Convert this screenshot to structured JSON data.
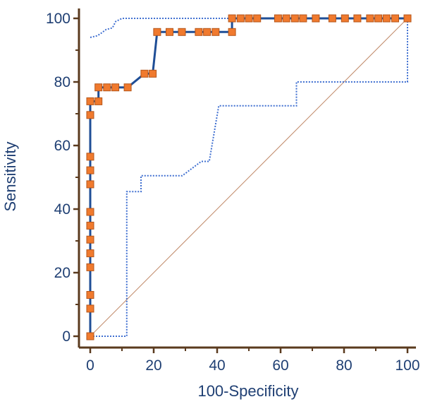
{
  "chart_data": {
    "type": "line",
    "xlabel": "100-Specificity",
    "ylabel": "Sensitivity",
    "xlim": [
      0,
      100
    ],
    "ylim": [
      0,
      100
    ],
    "x_ticks": [
      "0",
      "20",
      "40",
      "60",
      "80",
      "100"
    ],
    "y_ticks": [
      "0",
      "20",
      "40",
      "60",
      "80",
      "100"
    ],
    "grid": false,
    "legend": "none",
    "colors": {
      "axis": "#5a3a1e",
      "text": "#1f3f73",
      "roc_line": "#1f4e96",
      "marker_fill": "#f07a2e",
      "marker_edge": "#b5561a",
      "ci_line": "#3f6fd0",
      "reference_line": "#c08a6a"
    },
    "series": [
      {
        "role": "roc_curve",
        "style": "solid line with square markers",
        "points": [
          [
            0,
            0
          ],
          [
            0,
            8.7
          ],
          [
            0,
            13.0
          ],
          [
            0,
            21.7
          ],
          [
            0,
            26.1
          ],
          [
            0,
            30.4
          ],
          [
            0,
            34.8
          ],
          [
            0,
            39.1
          ],
          [
            0,
            47.8
          ],
          [
            0,
            52.2
          ],
          [
            0,
            56.5
          ],
          [
            0,
            69.6
          ],
          [
            0,
            73.9
          ],
          [
            2.6,
            73.9
          ],
          [
            2.6,
            78.3
          ],
          [
            5.3,
            78.3
          ],
          [
            7.9,
            78.3
          ],
          [
            11.8,
            78.3
          ],
          [
            17.1,
            82.6
          ],
          [
            19.7,
            82.6
          ],
          [
            21.1,
            95.7
          ],
          [
            25.0,
            95.7
          ],
          [
            28.9,
            95.7
          ],
          [
            34.2,
            95.7
          ],
          [
            36.8,
            95.7
          ],
          [
            39.5,
            95.7
          ],
          [
            44.7,
            95.7
          ],
          [
            44.7,
            100
          ],
          [
            47.4,
            100
          ],
          [
            50.0,
            100
          ],
          [
            52.6,
            100
          ],
          [
            59.2,
            100
          ],
          [
            61.8,
            100
          ],
          [
            64.5,
            100
          ],
          [
            67.1,
            100
          ],
          [
            71.1,
            100
          ],
          [
            76.3,
            100
          ],
          [
            80.3,
            100
          ],
          [
            84.2,
            100
          ],
          [
            88.2,
            100
          ],
          [
            90.8,
            100
          ],
          [
            93.4,
            100
          ],
          [
            96.1,
            100
          ],
          [
            100,
            100
          ]
        ]
      },
      {
        "role": "upper_confidence_bound",
        "style": "dotted",
        "points": [
          [
            0,
            94
          ],
          [
            2,
            94.5
          ],
          [
            3,
            95
          ],
          [
            5,
            96.5
          ],
          [
            7,
            97
          ],
          [
            8,
            99
          ],
          [
            10,
            100
          ],
          [
            100,
            100
          ]
        ]
      },
      {
        "role": "lower_confidence_bound",
        "style": "dotted",
        "points": [
          [
            0,
            0
          ],
          [
            11.5,
            0
          ],
          [
            11.5,
            45.5
          ],
          [
            16,
            45.5
          ],
          [
            16,
            50.5
          ],
          [
            29,
            50.5
          ],
          [
            35,
            55
          ],
          [
            37.5,
            55
          ],
          [
            40.5,
            72.5
          ],
          [
            65,
            72.5
          ],
          [
            65,
            80
          ],
          [
            100,
            80
          ],
          [
            100,
            100
          ]
        ]
      },
      {
        "role": "reference_diagonal",
        "style": "thin solid",
        "points": [
          [
            0,
            0
          ],
          [
            100,
            100
          ]
        ]
      }
    ]
  }
}
